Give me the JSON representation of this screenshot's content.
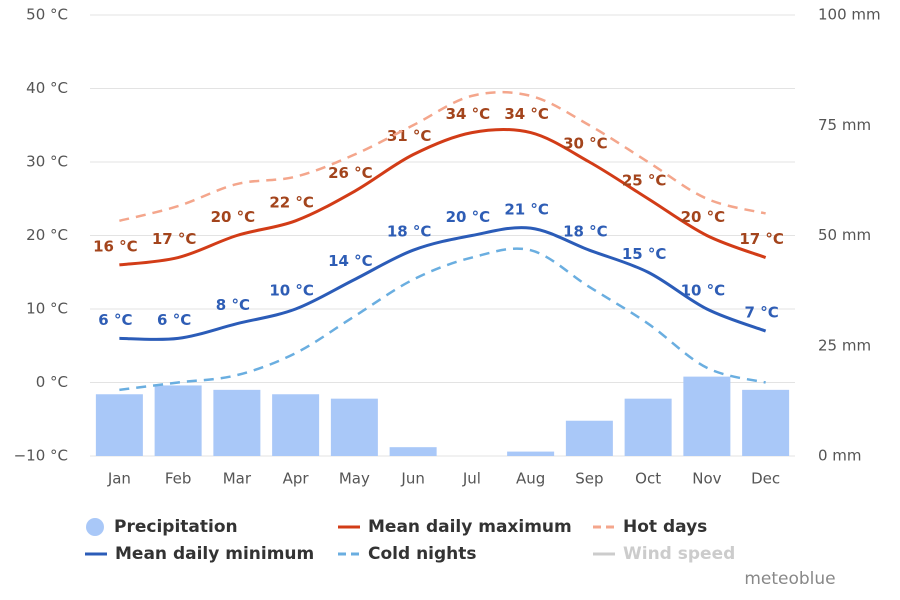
{
  "chart_data": {
    "type": "combo",
    "categories": [
      "Jan",
      "Feb",
      "Mar",
      "Apr",
      "May",
      "Jun",
      "Jul",
      "Aug",
      "Sep",
      "Oct",
      "Nov",
      "Dec"
    ],
    "ylim": [
      -10,
      50
    ],
    "yticks": [
      {
        "value": -10,
        "label": "−10 °C"
      },
      {
        "value": 0,
        "label": "0 °C"
      },
      {
        "value": 10,
        "label": "10 °C"
      },
      {
        "value": 20,
        "label": "20 °C"
      },
      {
        "value": 30,
        "label": "30 °C"
      },
      {
        "value": 40,
        "label": "40 °C"
      },
      {
        "value": 50,
        "label": "50 °C"
      }
    ],
    "y2lim": [
      0,
      100
    ],
    "y2ticks": [
      {
        "value": 0,
        "label": "0 mm"
      },
      {
        "value": 25,
        "label": "25 mm"
      },
      {
        "value": 50,
        "label": "50 mm"
      },
      {
        "value": 75,
        "label": "75 mm"
      },
      {
        "value": 100,
        "label": "100 mm"
      }
    ],
    "grid": true,
    "series": [
      {
        "name": "Precipitation",
        "type": "bar",
        "axis": "y2",
        "color": "#a9c8f8",
        "values": [
          14,
          16,
          15,
          14,
          13,
          2,
          0,
          1,
          8,
          13,
          18,
          15
        ]
      },
      {
        "name": "Mean daily maximum",
        "type": "line",
        "color": "#d23c17",
        "label_color": "#a3441c",
        "values": [
          16,
          17,
          20,
          22,
          26,
          31,
          34,
          34,
          30,
          25,
          20,
          17
        ],
        "value_labels": [
          "16 °C",
          "17 °C",
          "20 °C",
          "22 °C",
          "26 °C",
          "31 °C",
          "34 °C",
          "34 °C",
          "30 °C",
          "25 °C",
          "20 °C",
          "17 °C"
        ]
      },
      {
        "name": "Hot days",
        "type": "line",
        "dashed": true,
        "color": "#f4a68c",
        "values": [
          22,
          24,
          27,
          28,
          31,
          35,
          39,
          39,
          35,
          30,
          25,
          23
        ]
      },
      {
        "name": "Mean daily minimum",
        "type": "line",
        "color": "#2b5cb8",
        "label_color": "#2e5db5",
        "values": [
          6,
          6,
          8,
          10,
          14,
          18,
          20,
          21,
          18,
          15,
          10,
          7
        ],
        "value_labels": [
          "6 °C",
          "6 °C",
          "8 °C",
          "10 °C",
          "14 °C",
          "18 °C",
          "20 °C",
          "21 °C",
          "18 °C",
          "15 °C",
          "10 °C",
          "7 °C"
        ]
      },
      {
        "name": "Cold nights",
        "type": "line",
        "dashed": true,
        "color": "#6aaee0",
        "values": [
          -1,
          0,
          1,
          4,
          9,
          14,
          17,
          18,
          13,
          8,
          2,
          0
        ]
      }
    ],
    "inactive_legend": [
      {
        "name": "Wind speed",
        "color": "#cccccc"
      }
    ],
    "credit": "meteoblue"
  }
}
